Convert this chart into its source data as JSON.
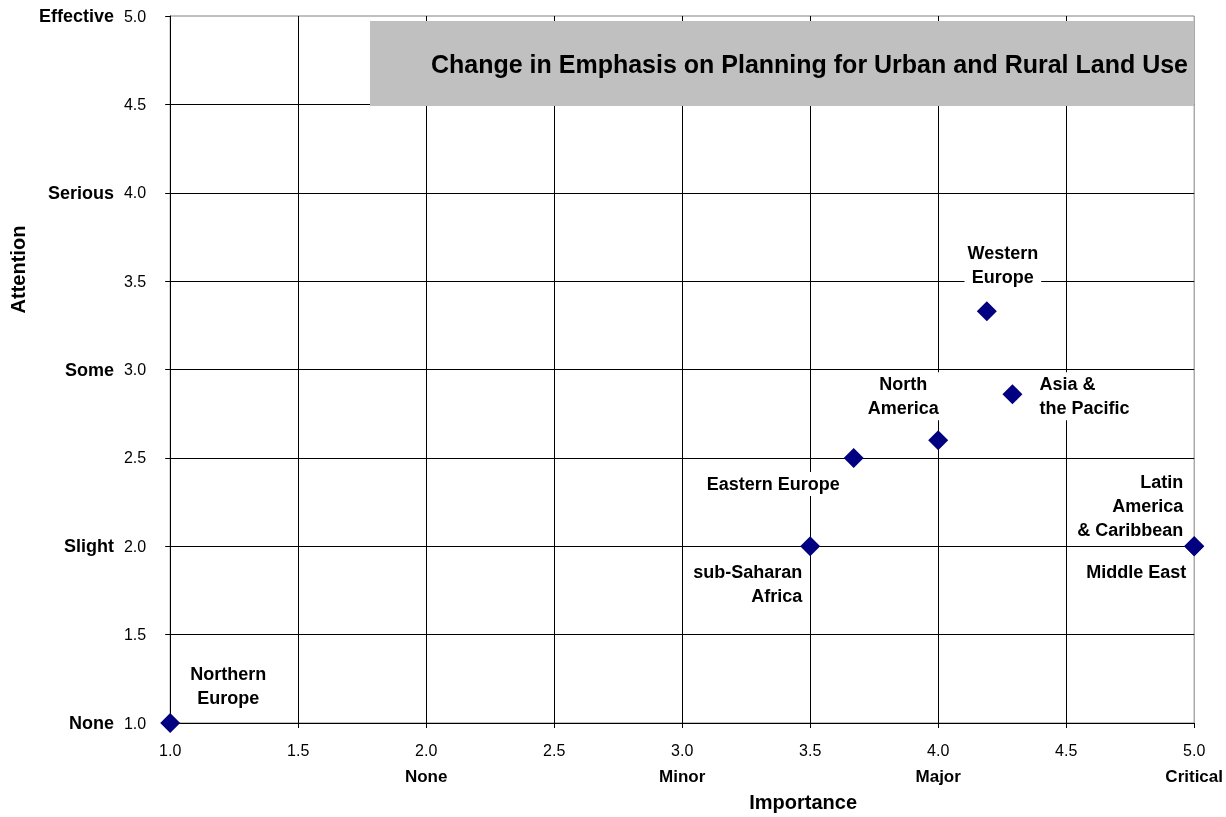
{
  "chart_data": {
    "type": "scatter",
    "title": "Change in Emphasis on Planning for Urban and Rural Land Use",
    "xlabel": "Importance",
    "ylabel": "Attention",
    "xlim": [
      1,
      5
    ],
    "xticks": [
      {
        "value": 1,
        "label": "1.0"
      },
      1.5,
      {
        "value": 2,
        "label": "2.0\nNone"
      },
      2.5,
      {
        "value": 3,
        "label": "3.0\nMinor"
      },
      3.5,
      {
        "value": 4,
        "label": "4.0\nMajor"
      },
      4.5,
      {
        "value": 5,
        "label": "5.0\nCritical"
      }
    ],
    "ylim": [
      1,
      5
    ],
    "yticks": [
      {
        "value": 1,
        "label": "None 1.0"
      },
      1.5,
      {
        "value": 2,
        "label": "Slight 2.0"
      },
      2.5,
      {
        "value": 3,
        "label": "Some 3.0"
      },
      3.5,
      {
        "value": 4,
        "label": "Serious 4.0"
      },
      4.5,
      {
        "value": 5,
        "label": "Effective 5.0"
      }
    ],
    "grid": true,
    "marker": "diamond",
    "series": [
      {
        "name": "Northern Europe",
        "color": "#000080",
        "x": [
          1
        ],
        "values": [
          1
        ]
      },
      {
        "name": "sub-Saharan Africa",
        "color": "#000080",
        "x": [
          3.5
        ],
        "values": [
          2
        ]
      },
      {
        "name": "Eastern Europe",
        "color": "#000080",
        "x": [
          3.67
        ],
        "values": [
          2.5
        ]
      },
      {
        "name": "North America",
        "color": "#000080",
        "x": [
          4.0
        ],
        "values": [
          2.6
        ]
      },
      {
        "name": "Western Europe",
        "color": "#000080",
        "x": [
          4.19
        ],
        "values": [
          3.33
        ]
      },
      {
        "name": "Asia & the Pacific",
        "color": "#000080",
        "x": [
          4.29
        ],
        "values": [
          2.86
        ]
      },
      {
        "name": "Latin America & Caribbean",
        "color": "#000080",
        "x": [
          5
        ],
        "values": [
          2
        ]
      },
      {
        "name": "Middle East",
        "color": "#000080",
        "x": [
          5
        ],
        "values": [
          2
        ]
      }
    ]
  }
}
